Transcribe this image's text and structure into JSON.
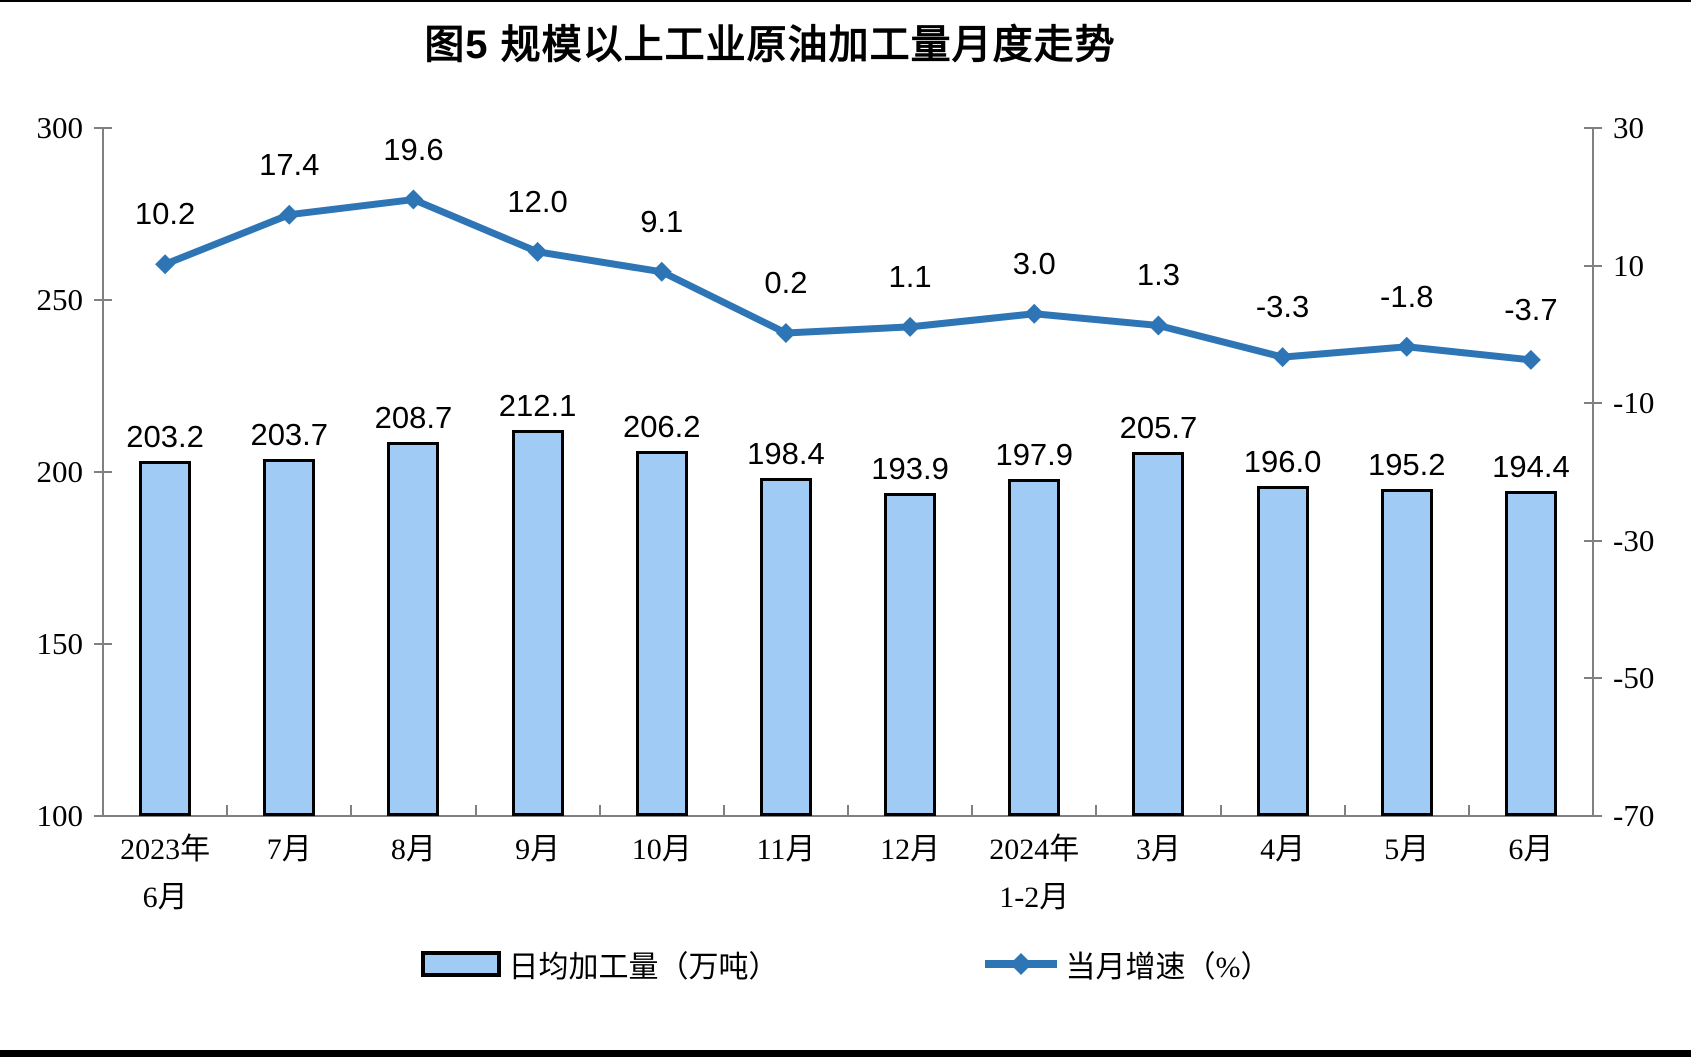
{
  "title": "图5  规模以上工业原油加工量月度走势",
  "colors": {
    "bar_fill": "#A0CBF5",
    "bar_border": "#000000",
    "line": "#2E75B6",
    "axis": "#808080",
    "text": "#000000"
  },
  "legend": {
    "bar_label": "日均加工量（万吨）",
    "line_label": "当月增速（%）"
  },
  "chart_data": {
    "type": "bar+line combo",
    "title": "图5  规模以上工业原油加工量月度走势",
    "categories": [
      "2023年\n6月",
      "7月",
      "8月",
      "9月",
      "10月",
      "11月",
      "12月",
      "2024年\n1-2月",
      "3月",
      "4月",
      "5月",
      "6月"
    ],
    "series": [
      {
        "name": "日均加工量（万吨）",
        "type": "bar",
        "axis": "left",
        "values": [
          203.2,
          203.7,
          208.7,
          212.1,
          206.2,
          198.4,
          193.9,
          197.9,
          205.7,
          196.0,
          195.2,
          194.4
        ]
      },
      {
        "name": "当月增速（%）",
        "type": "line",
        "axis": "right",
        "values": [
          10.2,
          17.4,
          19.6,
          12.0,
          9.1,
          0.2,
          1.1,
          3.0,
          1.3,
          -3.3,
          -1.8,
          -3.7
        ]
      }
    ],
    "left_axis": {
      "min": 100,
      "max": 300,
      "ticks": [
        300,
        250,
        200,
        150,
        100
      ]
    },
    "right_axis": {
      "min": -70,
      "max": 30,
      "ticks": [
        30,
        10,
        -10,
        -30,
        -50,
        -70
      ]
    },
    "grid": false,
    "legend_position": "bottom",
    "data_labels": true
  }
}
